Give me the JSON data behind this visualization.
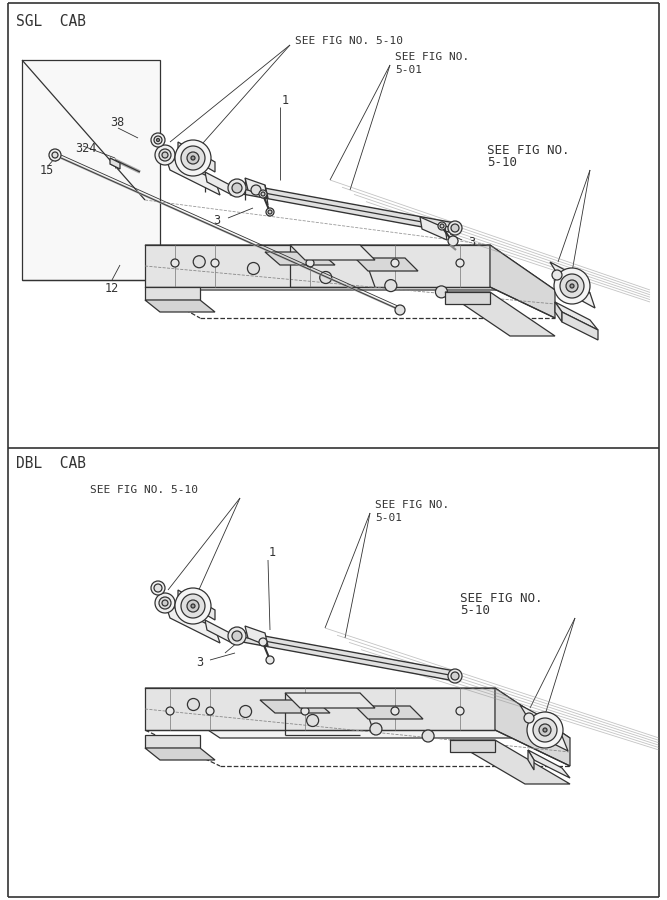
{
  "bg_color": "#ffffff",
  "lc": "#333333",
  "tc": "#333333",
  "font_title": 10.5,
  "font_label": 8.5,
  "font_ref": 8.0,
  "border_lw": 1.2,
  "main_lw": 0.9,
  "thin_lw": 0.6,
  "sgl_title": "SGL  CAB",
  "dbl_title": "DBL  CAB",
  "ref1": "SEE FIG NO. 5-10",
  "ref2_a": "SEE FIG NO.",
  "ref2_b": "5-01",
  "ref3_a": "SEE FIG NO.",
  "ref3_b": "5-10"
}
